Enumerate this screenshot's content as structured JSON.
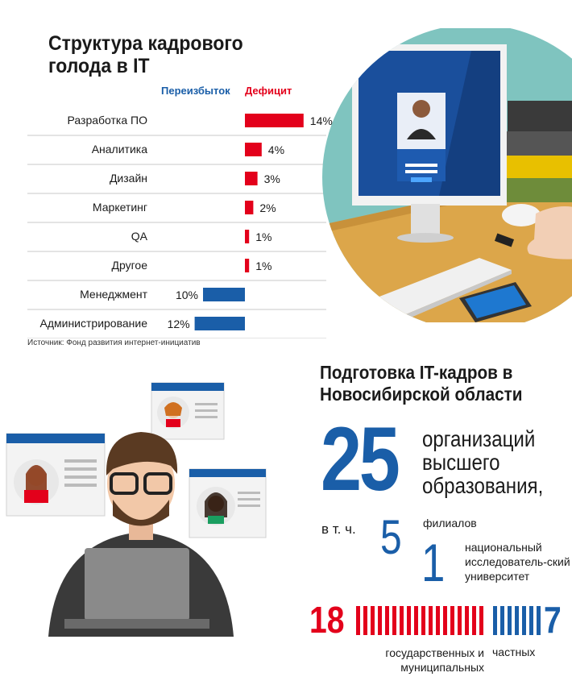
{
  "title": "Структура кадрового голода в IT",
  "legend": {
    "surplus": "Переизбыток",
    "deficit": "Дефицит"
  },
  "colors": {
    "deficit": "#e3001b",
    "surplus": "#1a5ea8",
    "accent_text": "#1a5ea8"
  },
  "chart_data": {
    "type": "bar",
    "categories": [
      "Разработка ПО",
      "Аналитика",
      "Дизайн",
      "Маркетинг",
      "QA",
      "Другое",
      "Менеджмент",
      "Администрирование"
    ],
    "series": [
      {
        "name": "Дефицит",
        "values": [
          14,
          4,
          3,
          2,
          1,
          1,
          0,
          0
        ]
      },
      {
        "name": "Переизбыток",
        "values": [
          0,
          0,
          0,
          0,
          0,
          0,
          10,
          12
        ]
      }
    ],
    "value_labels": [
      "14%",
      "4%",
      "3%",
      "2%",
      "1%",
      "1%",
      "10%",
      "12%"
    ],
    "unit": "%"
  },
  "source": "Источник: Фонд развития интернет-инициатив",
  "section2": {
    "title": "Подготовка IT-кадров в Новосибирской области",
    "total_number": "25",
    "total_text": "организаций высшего образования,",
    "including": "в т. ч.",
    "branches_number": "5",
    "branches_text": "филиалов",
    "national_number": "1",
    "national_text": "национальный исследователь-ский университет",
    "state_number": "18",
    "state_text": "государственных и муниципальных",
    "private_number": "7",
    "private_text": "частных"
  }
}
